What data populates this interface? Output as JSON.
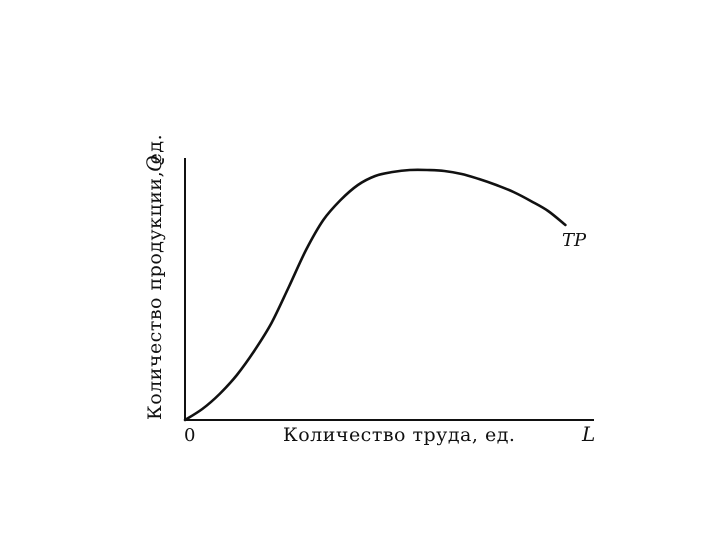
{
  "chart_data": {
    "type": "line",
    "title": "",
    "xlabel": "Количество труда, ед.",
    "ylabel": "Количество продукции, ед.",
    "x_axis_symbol": "L",
    "y_axis_symbol": "Q",
    "origin_label": "0",
    "grid": false,
    "tick_labels_shown": false,
    "series": [
      {
        "name": "TP",
        "x": [
          0,
          1,
          2,
          3,
          4,
          5,
          6,
          7,
          8,
          9,
          10,
          11,
          12,
          13,
          14,
          15,
          16,
          17,
          18,
          19,
          20,
          21,
          22
        ],
        "y": [
          0,
          1.1,
          2.6,
          4.5,
          6.9,
          9.7,
          13.3,
          17.0,
          20.0,
          22.0,
          23.5,
          24.4,
          24.8,
          25.0,
          25.0,
          24.9,
          24.6,
          24.1,
          23.5,
          22.8,
          21.9,
          20.9,
          19.5
        ]
      }
    ],
    "xlim": [
      0,
      24
    ],
    "ylim": [
      0,
      30
    ]
  }
}
